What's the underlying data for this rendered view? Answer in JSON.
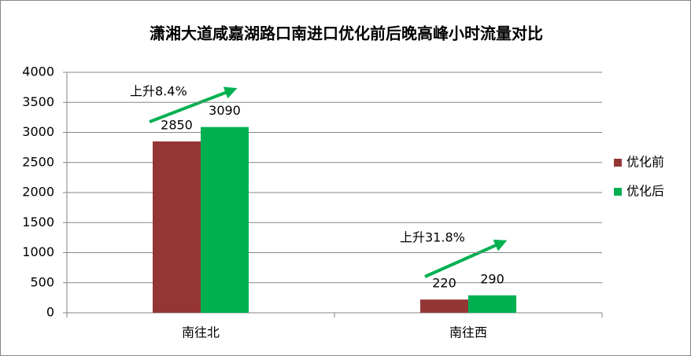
{
  "chart_data": {
    "type": "bar",
    "title": "潇湘大道咸嘉湖路口南进口优化前后晚高峰小时流量对比",
    "categories": [
      "南往北",
      "南往西"
    ],
    "series": [
      {
        "name": "优化前",
        "color": "#943634",
        "values": [
          2850,
          220
        ]
      },
      {
        "name": "优化后",
        "color": "#00b050",
        "values": [
          3090,
          290
        ]
      }
    ],
    "ylim": [
      0,
      4000
    ],
    "yticks": [
      0,
      500,
      1000,
      1500,
      2000,
      2500,
      3000,
      3500,
      4000
    ],
    "grid": true,
    "legend": "right",
    "annotations": [
      "上升8.4%",
      "上升31.8%"
    ]
  }
}
